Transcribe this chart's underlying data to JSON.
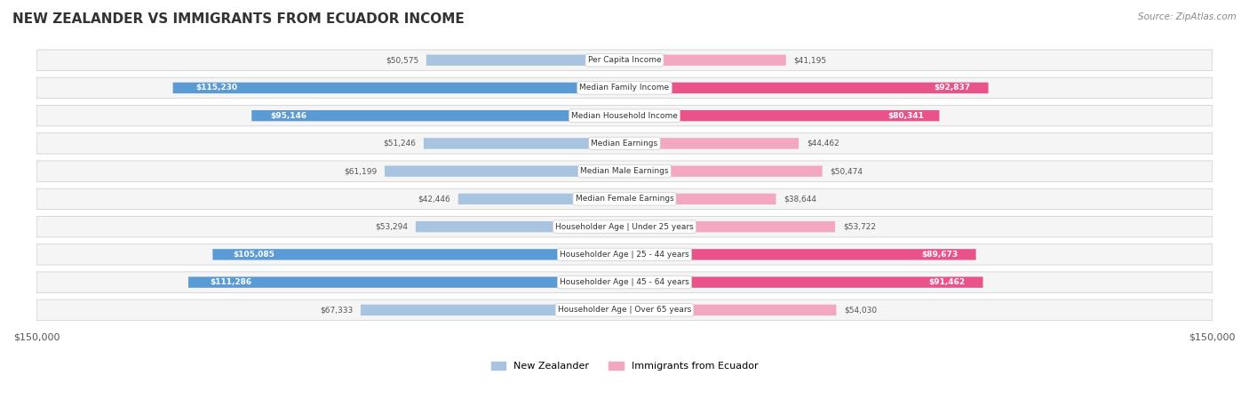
{
  "title": "NEW ZEALANDER VS IMMIGRANTS FROM ECUADOR INCOME",
  "source": "Source: ZipAtlas.com",
  "categories": [
    "Per Capita Income",
    "Median Family Income",
    "Median Household Income",
    "Median Earnings",
    "Median Male Earnings",
    "Median Female Earnings",
    "Householder Age | Under 25 years",
    "Householder Age | 25 - 44 years",
    "Householder Age | 45 - 64 years",
    "Householder Age | Over 65 years"
  ],
  "nz_values": [
    50575,
    115230,
    95146,
    51246,
    61199,
    42446,
    53294,
    105085,
    111286,
    67333
  ],
  "ec_values": [
    41195,
    92837,
    80341,
    44462,
    50474,
    38644,
    53722,
    89673,
    91462,
    54030
  ],
  "nz_labels": [
    "$50,575",
    "$115,230",
    "$95,146",
    "$51,246",
    "$61,199",
    "$42,446",
    "$53,294",
    "$105,085",
    "$111,286",
    "$67,333"
  ],
  "ec_labels": [
    "$41,195",
    "$92,837",
    "$80,341",
    "$44,462",
    "$50,474",
    "$38,644",
    "$53,722",
    "$89,673",
    "$91,462",
    "$54,030"
  ],
  "nz_color_light": "#a8c4e0",
  "nz_color_dark": "#5b9bd5",
  "ec_color_light": "#f4a7c0",
  "ec_color_dark": "#e9538a",
  "max_value": 150000,
  "bg_color": "#ffffff",
  "row_bg": "#f0f0f0",
  "row_bg_alt": "#ffffff",
  "label_color_dark": "#ffffff",
  "label_color_light": "#555555",
  "threshold_dark": 80000,
  "legend_nz": "New Zealander",
  "legend_ec": "Immigrants from Ecuador"
}
